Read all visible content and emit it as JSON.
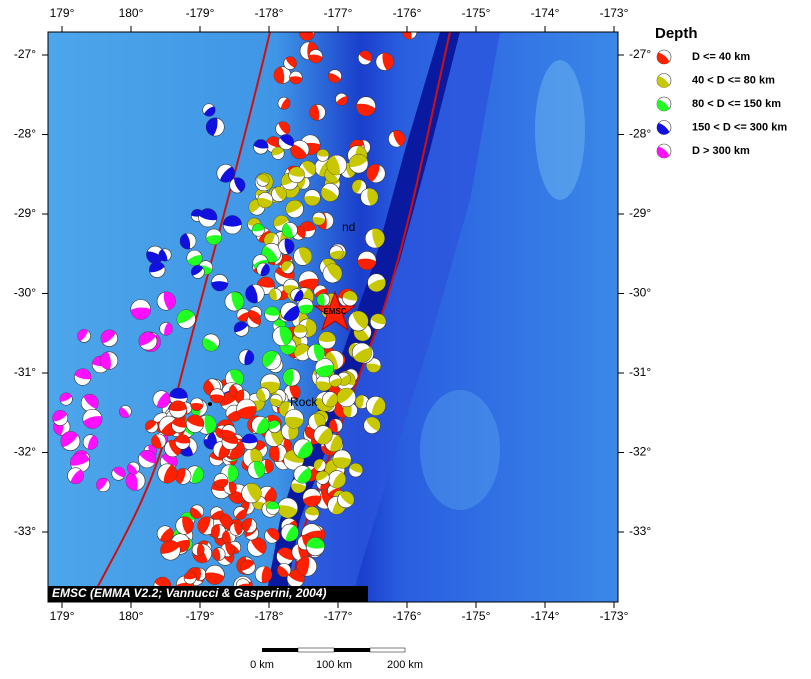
{
  "map": {
    "lon_labels": [
      "179°",
      "180°",
      "-179°",
      "-178°",
      "-177°",
      "-176°",
      "-175°",
      "-174°",
      "-173°"
    ],
    "lat_labels": [
      "-27°",
      "-28°",
      "-29°",
      "-30°",
      "-31°",
      "-32°",
      "-33°"
    ],
    "place_labels": [
      "nd",
      "Rock",
      "EMSC"
    ],
    "credit": "EMSC (EMMA V2.2; Vannucci & Gasperini, 2004)",
    "scale_labels": [
      "0 km",
      "100 km",
      "200 km"
    ],
    "legend": {
      "title": "Depth",
      "items": [
        {
          "label": "D <= 40 km",
          "color": "#ff2000"
        },
        {
          "label": "40 < D <= 80 km",
          "color": "#c8c800"
        },
        {
          "label": "80 < D <= 150 km",
          "color": "#20ff20"
        },
        {
          "label": "150 < D <= 300 km",
          "color": "#1010e0"
        },
        {
          "label": "D > 300 km",
          "color": "#ff10ff"
        }
      ]
    }
  }
}
